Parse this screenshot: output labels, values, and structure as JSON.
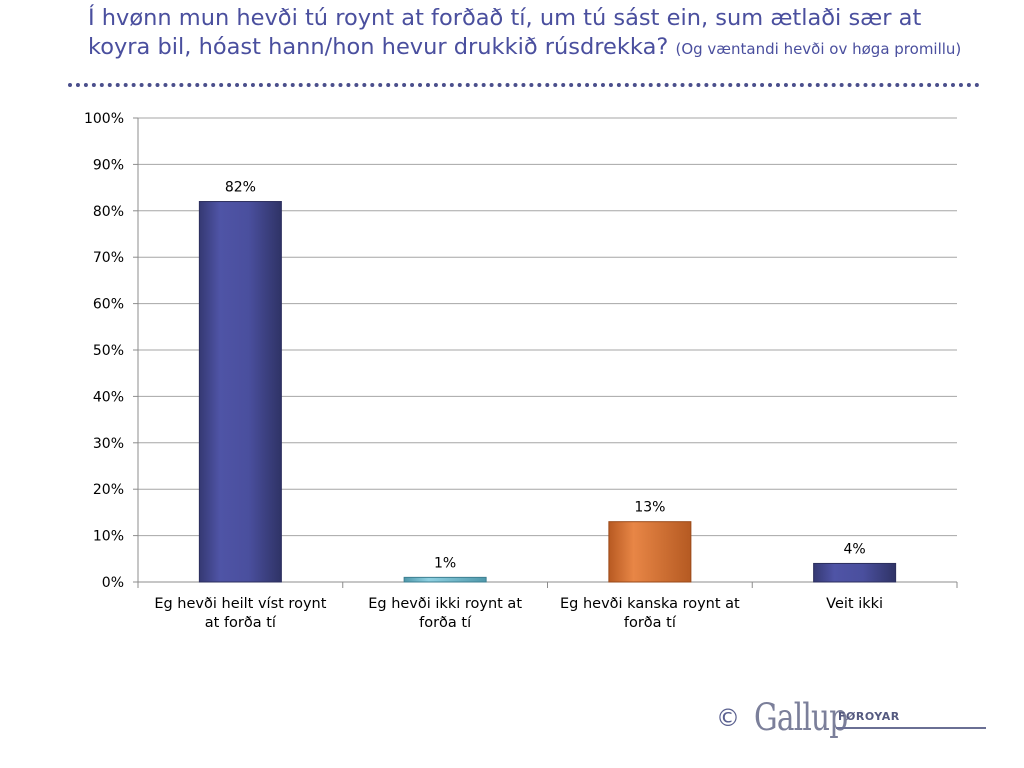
{
  "slide": {
    "title": "Í hvønn mun hevði tú roynt at forðað tí, um tú sást ein, sum ætlaði sær at koyra bil, hóast hann/hon hevur drukkið rúsdrekka?",
    "subtitle": "(Og væntandi hevði ov høga promillu)"
  },
  "logo": {
    "copyright": "©",
    "brand": "Gallup",
    "region": "FØROYAR"
  },
  "chart_data": {
    "type": "bar",
    "title": "",
    "xlabel": "",
    "ylabel": "",
    "ylim": [
      0,
      100
    ],
    "y_ticks": [
      0,
      10,
      20,
      30,
      40,
      50,
      60,
      70,
      80,
      90,
      100
    ],
    "tick_suffix": "%",
    "grid": true,
    "categories": [
      [
        "Eg hevði heilt víst roynt",
        "at forða tí"
      ],
      [
        "Eg hevði ikki roynt at",
        "forða tí"
      ],
      [
        "Eg hevði kanska roynt at",
        "forða tí"
      ],
      [
        "Veit ikki"
      ]
    ],
    "values": [
      82,
      1,
      13,
      4
    ],
    "data_labels": [
      "82%",
      "1%",
      "13%",
      "4%"
    ],
    "colors": [
      "#4a4f9e",
      "#7ec3d6",
      "#e07b39",
      "#4a4f9e"
    ]
  }
}
